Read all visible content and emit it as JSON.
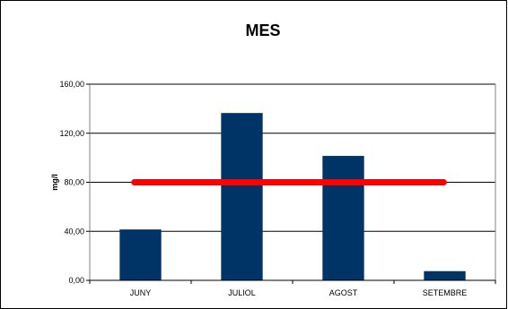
{
  "chart_data": {
    "type": "bar",
    "title": "MES",
    "xlabel": "",
    "ylabel": "mg/l",
    "categories": [
      "JUNY",
      "JULIOL",
      "AGOST",
      "SETEMBRE"
    ],
    "values": [
      41.5,
      136.5,
      101.5,
      7.5
    ],
    "ylim": [
      0,
      160
    ],
    "yticks": [
      0,
      40,
      80,
      120,
      160
    ],
    "ytick_labels": [
      "0,00",
      "40,00",
      "80,00",
      "120,00",
      "160,00"
    ],
    "reference_line": {
      "value": 80
    },
    "grid": true,
    "legend": "none",
    "colors": {
      "bar": "#003366",
      "reference_line": "#ff0000",
      "grid": "#000000"
    }
  }
}
